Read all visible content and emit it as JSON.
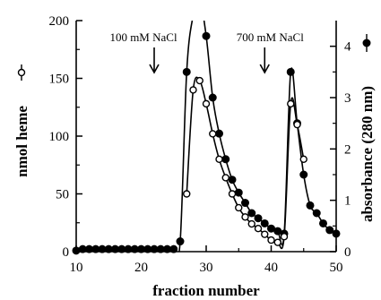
{
  "chart_data": {
    "type": "line",
    "xlabel": "fraction number",
    "ylabel_left": "nmol heme",
    "ylabel_right": "absorbance (280 nm)",
    "xlim": [
      10,
      50
    ],
    "ylim_left": [
      0,
      200
    ],
    "ylim_right": [
      0,
      4.5
    ],
    "xticks": [
      10,
      20,
      30,
      40,
      50
    ],
    "yticks_left": [
      0,
      50,
      100,
      150,
      200
    ],
    "yticks_right": [
      0,
      1,
      2,
      3,
      4
    ],
    "grid": false,
    "annotations": [
      {
        "text": "100 mM NaCl",
        "x": 22
      },
      {
        "text": "700 mM NaCl",
        "x": 39
      }
    ],
    "series": [
      {
        "marker": "filled-circle",
        "axis": "right",
        "x": [
          10,
          11,
          12,
          13,
          14,
          15,
          16,
          17,
          18,
          19,
          20,
          21,
          22,
          23,
          24,
          25,
          26,
          27,
          28,
          29,
          30,
          31,
          32,
          33,
          34,
          35,
          36,
          37,
          38,
          39,
          40,
          41,
          42,
          43,
          44,
          45,
          46,
          47,
          48,
          49,
          50
        ],
        "y": [
          0.02,
          0.05,
          0.05,
          0.05,
          0.05,
          0.05,
          0.05,
          0.05,
          0.05,
          0.05,
          0.05,
          0.05,
          0.05,
          0.05,
          0.05,
          0.05,
          0.2,
          3.5,
          4.6,
          4.9,
          4.2,
          3.0,
          2.3,
          1.8,
          1.4,
          1.15,
          0.95,
          0.75,
          0.65,
          0.55,
          0.45,
          0.4,
          0.35,
          3.5,
          2.5,
          1.5,
          0.9,
          0.75,
          0.55,
          0.42,
          0.35
        ]
      },
      {
        "marker": "open-circle",
        "axis": "left",
        "x": [
          27,
          28,
          29,
          30,
          31,
          32,
          33,
          34,
          35,
          36,
          37,
          38,
          39,
          40,
          41,
          42,
          43,
          44,
          45
        ],
        "y": [
          50,
          140,
          148,
          128,
          102,
          80,
          64,
          50,
          38,
          30,
          24,
          20,
          15,
          10,
          8,
          13,
          128,
          110,
          80
        ]
      }
    ]
  }
}
